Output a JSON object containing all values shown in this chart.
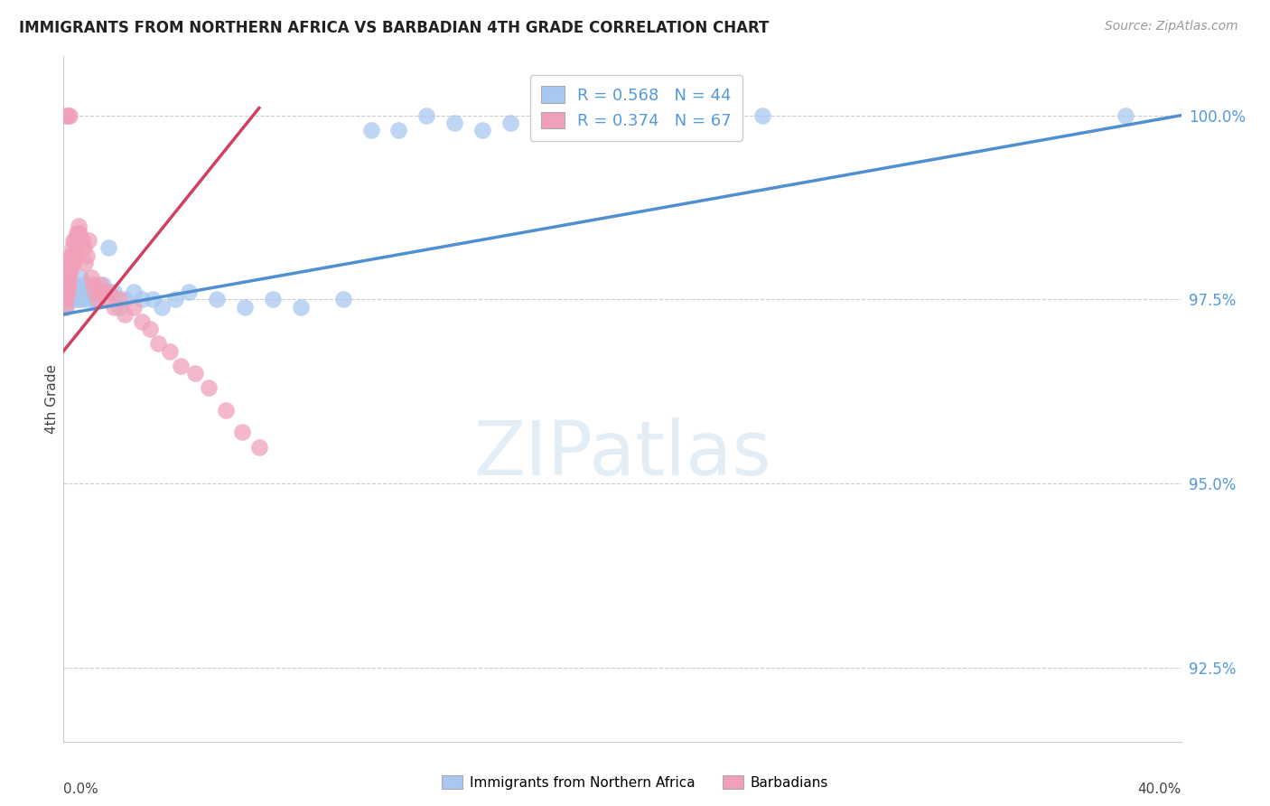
{
  "title": "IMMIGRANTS FROM NORTHERN AFRICA VS BARBADIAN 4TH GRADE CORRELATION CHART",
  "source": "Source: ZipAtlas.com",
  "ylabel": "4th Grade",
  "yticks": [
    92.5,
    95.0,
    97.5,
    100.0
  ],
  "ytick_labels": [
    "92.5%",
    "95.0%",
    "97.5%",
    "100.0%"
  ],
  "xmin": 0.0,
  "xmax": 40.0,
  "ymin": 91.5,
  "ymax": 100.8,
  "blue_R": 0.568,
  "blue_N": 44,
  "pink_R": 0.374,
  "pink_N": 67,
  "blue_color": "#A8C8F0",
  "pink_color": "#F0A0B8",
  "blue_line_color": "#5090D0",
  "pink_line_color": "#D04060",
  "legend_label_blue": "Immigrants from Northern Africa",
  "legend_label_pink": "Barbadians",
  "blue_line_x0": 0.0,
  "blue_line_y0": 97.3,
  "blue_line_x1": 40.0,
  "blue_line_y1": 100.0,
  "pink_line_x0": 0.0,
  "pink_line_y0": 96.8,
  "pink_line_x1": 7.0,
  "pink_line_y1": 100.1,
  "blue_x": [
    0.1,
    0.15,
    0.2,
    0.25,
    0.3,
    0.35,
    0.4,
    0.45,
    0.5,
    0.55,
    0.6,
    0.65,
    0.7,
    0.75,
    0.8,
    0.9,
    1.0,
    1.1,
    1.2,
    1.4,
    1.6,
    1.8,
    2.0,
    2.2,
    2.5,
    2.8,
    3.2,
    3.5,
    4.0,
    4.5,
    5.5,
    6.5,
    7.5,
    8.5,
    10.0,
    11.0,
    12.0,
    13.0,
    14.0,
    15.0,
    16.0,
    20.0,
    25.0,
    38.0
  ],
  "blue_y": [
    97.4,
    97.5,
    97.5,
    97.6,
    97.5,
    97.6,
    97.5,
    97.7,
    97.6,
    97.5,
    97.8,
    97.5,
    97.6,
    97.7,
    97.5,
    97.6,
    97.5,
    97.5,
    97.6,
    97.7,
    98.2,
    97.6,
    97.4,
    97.5,
    97.6,
    97.5,
    97.5,
    97.4,
    97.5,
    97.6,
    97.5,
    97.4,
    97.5,
    97.4,
    97.5,
    99.8,
    99.8,
    100.0,
    99.9,
    99.8,
    99.9,
    99.8,
    100.0,
    100.0
  ],
  "pink_x": [
    0.02,
    0.03,
    0.04,
    0.05,
    0.06,
    0.07,
    0.08,
    0.09,
    0.1,
    0.11,
    0.12,
    0.13,
    0.14,
    0.15,
    0.16,
    0.17,
    0.18,
    0.19,
    0.2,
    0.21,
    0.22,
    0.23,
    0.24,
    0.25,
    0.27,
    0.29,
    0.31,
    0.33,
    0.35,
    0.37,
    0.4,
    0.43,
    0.46,
    0.5,
    0.54,
    0.58,
    0.62,
    0.67,
    0.72,
    0.78,
    0.84,
    0.91,
    0.98,
    1.05,
    1.13,
    1.21,
    1.3,
    1.4,
    1.5,
    1.65,
    1.8,
    2.0,
    2.2,
    2.5,
    2.8,
    3.1,
    3.4,
    3.8,
    4.2,
    4.7,
    5.2,
    5.8,
    6.4,
    7.0,
    0.08,
    0.15,
    0.22
  ],
  "pink_y": [
    97.5,
    97.6,
    97.4,
    97.5,
    97.7,
    97.6,
    97.5,
    97.6,
    97.7,
    97.6,
    97.7,
    97.6,
    97.8,
    97.7,
    97.6,
    97.8,
    97.7,
    97.9,
    97.8,
    98.0,
    97.9,
    98.0,
    98.1,
    97.9,
    98.1,
    98.0,
    98.2,
    98.0,
    98.3,
    98.1,
    98.3,
    98.2,
    98.4,
    98.4,
    98.5,
    98.4,
    98.3,
    98.3,
    98.2,
    98.0,
    98.1,
    98.3,
    97.8,
    97.7,
    97.6,
    97.5,
    97.7,
    97.6,
    97.5,
    97.6,
    97.4,
    97.5,
    97.3,
    97.4,
    97.2,
    97.1,
    96.9,
    96.8,
    96.6,
    96.5,
    96.3,
    96.0,
    95.7,
    95.5,
    100.0,
    100.0,
    100.0
  ]
}
